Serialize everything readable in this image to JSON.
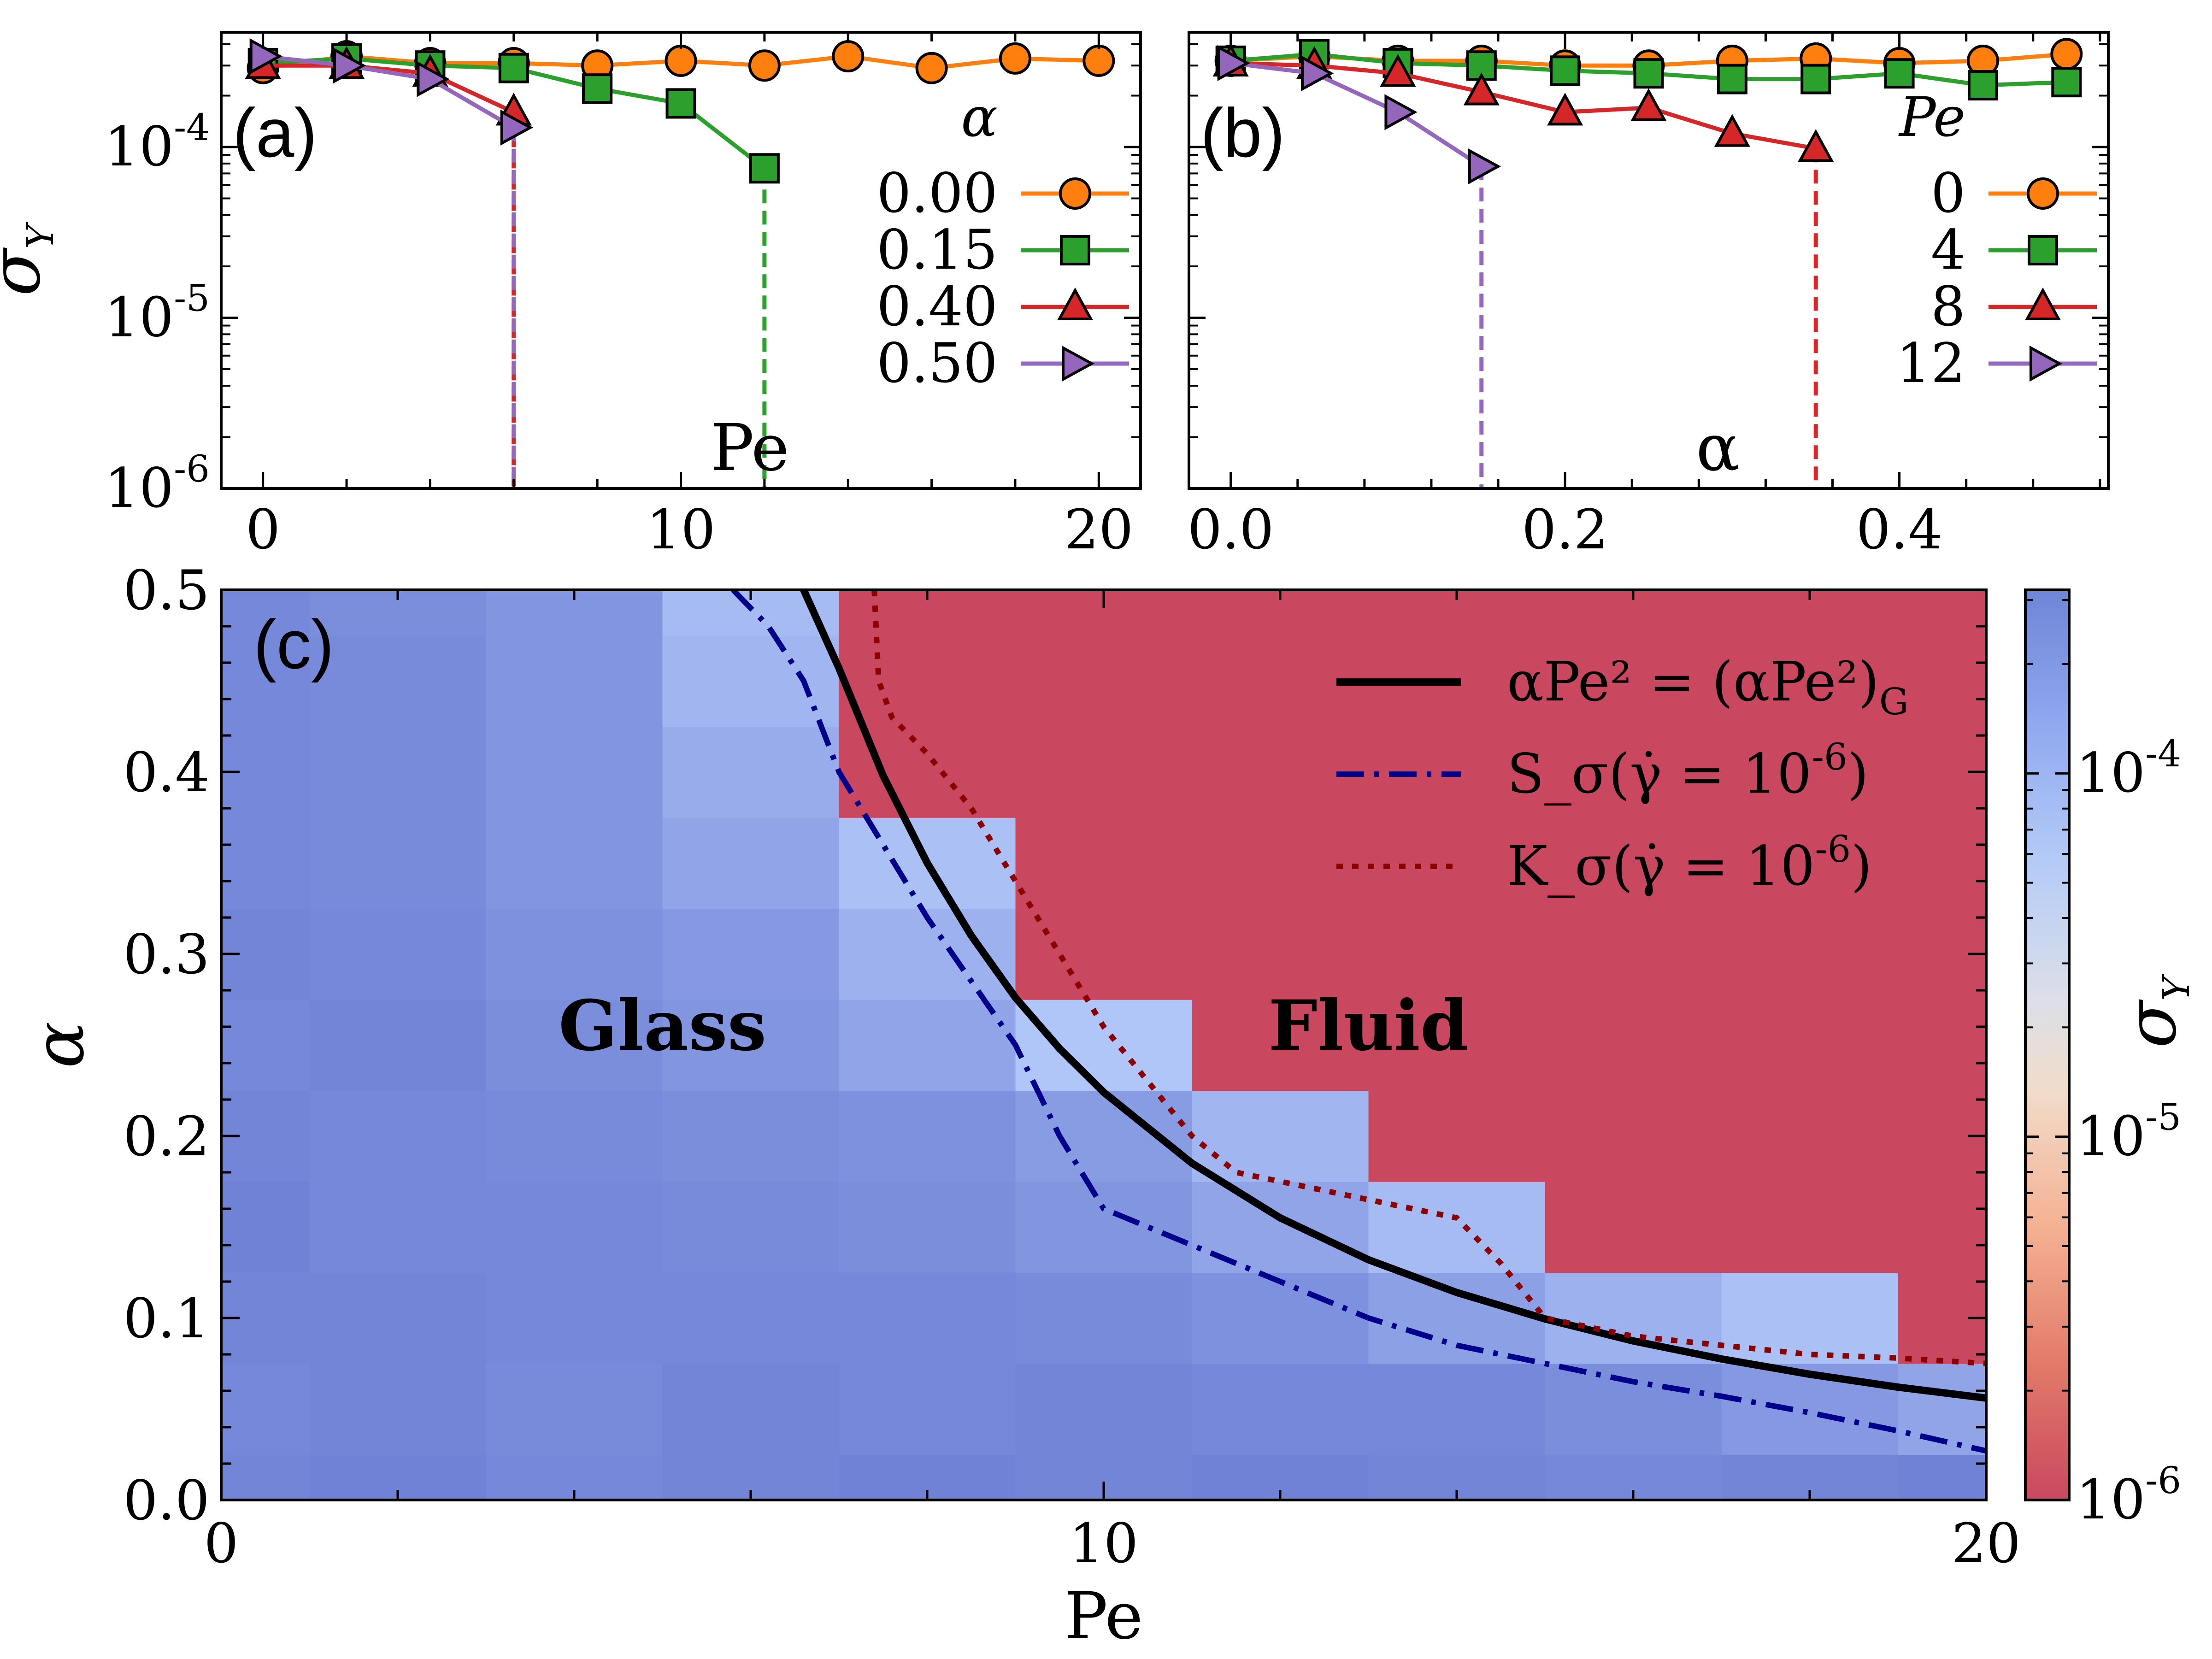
{
  "chart_data": [
    {
      "panel_label": "(a)",
      "type": "line",
      "x_label": "Pe",
      "y_label": "σ_Y",
      "y_scale": "log",
      "xlim": [
        -1,
        21
      ],
      "ylim": [
        1e-06,
        0.00047
      ],
      "x_ticks": [
        "0",
        "10",
        "20"
      ],
      "y_ticks": [
        "10^-4",
        "10^-5",
        "10^-6"
      ],
      "legend_title": "α",
      "legend_placement": "right",
      "series": [
        {
          "name": "0.00",
          "color": "#ff7f0e",
          "marker": "circle",
          "x": [
            0,
            2,
            4,
            6,
            8,
            10,
            12,
            14,
            16,
            18,
            20
          ],
          "y": [
            0.00029,
            0.00034,
            0.00031,
            0.00031,
            0.0003,
            0.00032,
            0.0003,
            0.00034,
            0.00029,
            0.00033,
            0.00032
          ]
        },
        {
          "name": "0.15",
          "color": "#2ca02c",
          "marker": "square",
          "x": [
            0,
            2,
            4,
            6,
            8,
            10,
            12
          ],
          "y": [
            0.00031,
            0.00033,
            0.0003,
            0.00029,
            0.00022,
            0.00018,
            7.5e-05
          ],
          "drop_at_x": 12
        },
        {
          "name": "0.40",
          "color": "#d62728",
          "marker": "triangle",
          "x": [
            0,
            2,
            4,
            6
          ],
          "y": [
            0.0003,
            0.0003,
            0.00027,
            0.00016
          ],
          "drop_at_x": 6
        },
        {
          "name": "0.50",
          "color": "#9467bd",
          "marker": "triangle-right",
          "x": [
            0,
            2,
            4,
            6
          ],
          "y": [
            0.00034,
            0.0003,
            0.00025,
            0.00013
          ],
          "drop_at_x": 6
        }
      ]
    },
    {
      "panel_label": "(b)",
      "type": "line",
      "x_label": "α",
      "y_scale": "log",
      "xlim": [
        -0.025,
        0.525
      ],
      "ylim": [
        1e-06,
        0.00047
      ],
      "x_ticks": [
        "0.0",
        "0.2",
        "0.4"
      ],
      "legend_title": "Pe",
      "legend_placement": "right",
      "series": [
        {
          "name": "0",
          "color": "#ff7f0e",
          "marker": "circle",
          "x": [
            0,
            0.05,
            0.1,
            0.15,
            0.2,
            0.25,
            0.3,
            0.35,
            0.4,
            0.45,
            0.5
          ],
          "y": [
            0.00032,
            0.00034,
            0.00032,
            0.00032,
            0.0003,
            0.0003,
            0.00032,
            0.00033,
            0.00031,
            0.00032,
            0.00035
          ]
        },
        {
          "name": "4",
          "color": "#2ca02c",
          "marker": "square",
          "x": [
            0,
            0.05,
            0.1,
            0.15,
            0.2,
            0.25,
            0.3,
            0.35,
            0.4,
            0.45,
            0.5
          ],
          "y": [
            0.00032,
            0.00035,
            0.00031,
            0.0003,
            0.00028,
            0.00027,
            0.00025,
            0.00025,
            0.00027,
            0.00023,
            0.00024
          ]
        },
        {
          "name": "8",
          "color": "#d62728",
          "marker": "triangle",
          "x": [
            0,
            0.05,
            0.1,
            0.15,
            0.2,
            0.25,
            0.3,
            0.35
          ],
          "y": [
            0.00031,
            0.0003,
            0.00027,
            0.00021,
            0.00016,
            0.00017,
            0.00012,
            9.8e-05
          ],
          "drop_at_x": 0.35
        },
        {
          "name": "12",
          "color": "#9467bd",
          "marker": "triangle-right",
          "x": [
            0,
            0.05,
            0.1,
            0.15
          ],
          "y": [
            0.00031,
            0.00027,
            0.00016,
            7.7e-05
          ],
          "drop_at_x": 0.15
        }
      ]
    },
    {
      "panel_label": "(c)",
      "type": "heatmap",
      "x_label": "Pe",
      "y_label": "α",
      "colorbar_label": "σ_Y",
      "colorbar_scale": "log",
      "colorbar_range": [
        1e-06,
        0.00032
      ],
      "colorbar_ticks": [
        "10^-4",
        "10^-5",
        "10^-6"
      ],
      "xlim": [
        0,
        20
      ],
      "ylim": [
        0,
        0.5
      ],
      "x_ticks": [
        "0",
        "10",
        "20"
      ],
      "y_ticks": [
        "0.0",
        "0.1",
        "0.2",
        "0.3",
        "0.4",
        "0.5"
      ],
      "x_centers": [
        0,
        2,
        4,
        6,
        8,
        10,
        12,
        14,
        16,
        18,
        20
      ],
      "y_centers": [
        0,
        0.05,
        0.1,
        0.15,
        0.2,
        0.25,
        0.3,
        0.35,
        0.4,
        0.45,
        0.5
      ],
      "fluid_color": "#c9485f",
      "note_value": "null = fluid (σ_Y ≈ 0)",
      "values": [
        [
          0.00031,
          0.00032,
          0.0003,
          0.00031,
          0.00032,
          0.00031,
          0.00032,
          0.00031,
          0.0003,
          0.00031,
          0.00032
        ],
        [
          0.0003,
          0.00031,
          0.00029,
          0.00031,
          0.0003,
          0.00031,
          0.0003,
          0.0003,
          0.00028,
          0.00025,
          0.00022
        ],
        [
          0.00031,
          0.00031,
          0.0003,
          0.0003,
          0.0003,
          0.00029,
          0.00027,
          0.00023,
          0.00019,
          0.00016,
          null
        ],
        [
          0.00032,
          0.0003,
          0.0003,
          0.00029,
          0.00028,
          0.00026,
          0.00022,
          0.00017,
          null,
          null,
          null
        ],
        [
          0.00031,
          0.0003,
          0.00029,
          0.00028,
          0.00027,
          0.00024,
          0.00018,
          null,
          null,
          null,
          null
        ],
        [
          0.0003,
          0.00031,
          0.00028,
          0.00026,
          0.00022,
          0.00015,
          null,
          null,
          null,
          null,
          null
        ],
        [
          0.00031,
          0.0003,
          0.00027,
          0.00025,
          0.00019,
          null,
          null,
          null,
          null,
          null,
          null
        ],
        [
          0.0003,
          0.00029,
          0.00026,
          0.00022,
          0.00016,
          null,
          null,
          null,
          null,
          null,
          null
        ],
        [
          0.0003,
          0.00029,
          0.00026,
          0.0002,
          null,
          null,
          null,
          null,
          null,
          null,
          null
        ],
        [
          0.0003,
          0.00029,
          0.00026,
          0.00018,
          null,
          null,
          null,
          null,
          null,
          null,
          null
        ],
        [
          0.0003,
          0.00028,
          0.00026,
          0.00017,
          null,
          null,
          null,
          null,
          null,
          null,
          null
        ]
      ],
      "region_labels": [
        {
          "text": "Glass",
          "x": 5,
          "y": 0.26
        },
        {
          "text": "Fluid",
          "x": 13,
          "y": 0.26
        }
      ],
      "legend_placement": "top-right",
      "lines": [
        {
          "name": "αPe² = (αPe²)_G",
          "color": "#000000",
          "style": "solid",
          "x": [
            6.6,
            7,
            7.5,
            8,
            8.5,
            9,
            9.5,
            10,
            11,
            12,
            13,
            14,
            15,
            16,
            17,
            18,
            19,
            20
          ],
          "y": [
            0.5,
            0.457,
            0.398,
            0.35,
            0.31,
            0.276,
            0.248,
            0.224,
            0.185,
            0.155,
            0.132,
            0.114,
            0.0995,
            0.0874,
            0.0775,
            0.0691,
            0.062,
            0.056
          ]
        },
        {
          "name": "S_σ(γ̇ = 10^-6)",
          "color": "#00008b",
          "style": "dashdot",
          "x": [
            5.8,
            6.2,
            6.6,
            7,
            7.5,
            8,
            8.5,
            9,
            9.5,
            10,
            11,
            12,
            13,
            14,
            15,
            16,
            17,
            18,
            19,
            20
          ],
          "y": [
            0.5,
            0.48,
            0.45,
            0.4,
            0.36,
            0.32,
            0.285,
            0.25,
            0.2,
            0.16,
            0.14,
            0.12,
            0.1,
            0.085,
            0.075,
            0.065,
            0.057,
            0.048,
            0.038,
            0.027
          ]
        },
        {
          "name": "K_σ(γ̇ = 10^-6)",
          "color": "#8b0000",
          "style": "dotted",
          "x": [
            7.4,
            7.45,
            7.6,
            8,
            8.5,
            9,
            9.5,
            10,
            10.5,
            11,
            11.5,
            12,
            13,
            14,
            14.5,
            15,
            16,
            17,
            18,
            19,
            20
          ],
          "y": [
            0.5,
            0.45,
            0.43,
            0.41,
            0.38,
            0.34,
            0.3,
            0.26,
            0.23,
            0.2,
            0.18,
            0.175,
            0.165,
            0.155,
            0.13,
            0.1,
            0.09,
            0.085,
            0.08,
            0.078,
            0.075
          ]
        }
      ]
    }
  ]
}
